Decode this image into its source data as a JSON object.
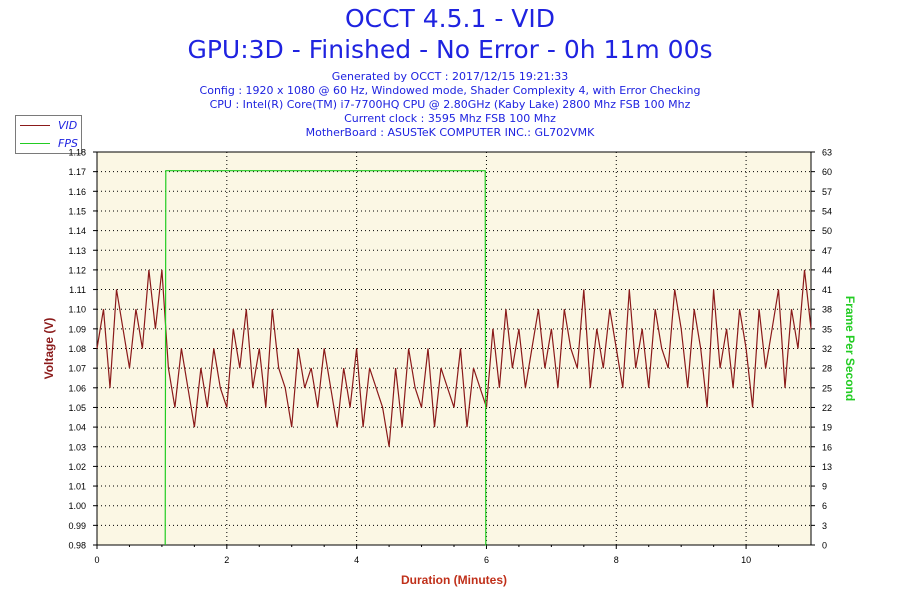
{
  "title": "OCCT 4.5.1 - VID",
  "subtitle": "GPU:3D - Finished - No Error - 0h 11m 00s",
  "info_lines": [
    "Generated by OCCT : 2017/12/15 19:21:33",
    "Config : 1920 x 1080 @ 60 Hz, Windowed mode, Shader Complexity 4, with Error Checking",
    "CPU : Intel(R) Core(TM) i7-7700HQ CPU @ 2.80GHz (Kaby Lake) 2800 Mhz FSB 100 Mhz",
    "Current clock : 3595 Mhz FSB 100 Mhz",
    "MotherBoard : ASUSTeK COMPUTER INC.: GL702VMK"
  ],
  "legend": [
    {
      "label": "VID",
      "color": "#8b1a1a"
    },
    {
      "label": "FPS",
      "color": "#22cc22"
    }
  ],
  "colors": {
    "title": "#1f23e0",
    "plot_background": "#fbf7e4",
    "vid_line": "#8b1a1a",
    "fps_line": "#22cc22",
    "left_axis_title": "#8b1a1a",
    "right_axis_title": "#22cc22",
    "x_axis_title": "#c0301a"
  },
  "chart_data": {
    "type": "line",
    "title": "OCCT 4.5.1 - VID",
    "subtitle": "GPU:3D - Finished - No Error - 0h 11m 00s",
    "xlabel": "Duration (Minutes)",
    "ylabel": "Voltage (V)",
    "y2label": "Frame Per Second",
    "xlim": [
      0,
      11
    ],
    "ylim": [
      0.98,
      1.18
    ],
    "y2lim": [
      0,
      63
    ],
    "x_ticks": [
      0,
      2,
      4,
      6,
      8,
      10
    ],
    "y_ticks": [
      "0.98",
      "0.99",
      "1.00",
      "1.01",
      "1.02",
      "1.03",
      "1.04",
      "1.05",
      "1.06",
      "1.07",
      "1.08",
      "1.09",
      "1.10",
      "1.11",
      "1.12",
      "1.13",
      "1.14",
      "1.15",
      "1.16",
      "1.17",
      "1.18"
    ],
    "y2_ticks": [
      "0",
      "3",
      "6",
      "9",
      "13",
      "16",
      "19",
      "22",
      "25",
      "28",
      "32",
      "35",
      "38",
      "41",
      "44",
      "47",
      "50",
      "54",
      "57",
      "60",
      "63"
    ],
    "grid": true,
    "legend_position": "top-left",
    "series": [
      {
        "name": "VID",
        "axis": "left",
        "x": [
          0,
          0.1,
          0.2,
          0.3,
          0.4,
          0.5,
          0.6,
          0.7,
          0.8,
          0.9,
          1.0,
          1.1,
          1.2,
          1.3,
          1.4,
          1.5,
          1.6,
          1.7,
          1.8,
          1.9,
          2.0,
          2.1,
          2.2,
          2.3,
          2.4,
          2.5,
          2.6,
          2.7,
          2.8,
          2.9,
          3.0,
          3.1,
          3.2,
          3.3,
          3.4,
          3.5,
          3.6,
          3.7,
          3.8,
          3.9,
          4.0,
          4.1,
          4.2,
          4.3,
          4.4,
          4.5,
          4.6,
          4.7,
          4.8,
          4.9,
          5.0,
          5.1,
          5.2,
          5.3,
          5.4,
          5.5,
          5.6,
          5.7,
          5.8,
          5.9,
          6.0,
          6.1,
          6.2,
          6.3,
          6.4,
          6.5,
          6.6,
          6.7,
          6.8,
          6.9,
          7.0,
          7.1,
          7.2,
          7.3,
          7.4,
          7.5,
          7.6,
          7.7,
          7.8,
          7.9,
          8.0,
          8.1,
          8.2,
          8.3,
          8.4,
          8.5,
          8.6,
          8.7,
          8.8,
          8.9,
          9.0,
          9.1,
          9.2,
          9.3,
          9.4,
          9.5,
          9.6,
          9.7,
          9.8,
          9.9,
          10.0,
          10.1,
          10.2,
          10.3,
          10.4,
          10.5,
          10.6,
          10.7,
          10.8,
          10.9,
          11.0
        ],
        "values": [
          1.08,
          1.1,
          1.06,
          1.11,
          1.09,
          1.07,
          1.1,
          1.08,
          1.12,
          1.09,
          1.12,
          1.07,
          1.05,
          1.08,
          1.06,
          1.04,
          1.07,
          1.05,
          1.08,
          1.06,
          1.05,
          1.09,
          1.07,
          1.1,
          1.06,
          1.08,
          1.05,
          1.1,
          1.07,
          1.06,
          1.04,
          1.08,
          1.06,
          1.07,
          1.05,
          1.08,
          1.06,
          1.04,
          1.07,
          1.05,
          1.08,
          1.04,
          1.07,
          1.06,
          1.05,
          1.03,
          1.07,
          1.04,
          1.08,
          1.06,
          1.05,
          1.08,
          1.04,
          1.07,
          1.06,
          1.05,
          1.08,
          1.04,
          1.07,
          1.06,
          1.05,
          1.09,
          1.06,
          1.1,
          1.07,
          1.09,
          1.06,
          1.08,
          1.1,
          1.07,
          1.09,
          1.06,
          1.1,
          1.08,
          1.07,
          1.11,
          1.06,
          1.09,
          1.07,
          1.1,
          1.08,
          1.06,
          1.11,
          1.07,
          1.09,
          1.06,
          1.1,
          1.08,
          1.07,
          1.11,
          1.09,
          1.06,
          1.1,
          1.08,
          1.05,
          1.11,
          1.07,
          1.09,
          1.06,
          1.1,
          1.08,
          1.05,
          1.1,
          1.07,
          1.09,
          1.11,
          1.06,
          1.1,
          1.08,
          1.12,
          1.09
        ]
      },
      {
        "name": "FPS",
        "axis": "right",
        "x": [
          1.05,
          1.05,
          1.06,
          5.98,
          5.99,
          6.0
        ],
        "values": [
          0,
          0,
          60,
          60,
          0,
          0
        ]
      }
    ]
  }
}
